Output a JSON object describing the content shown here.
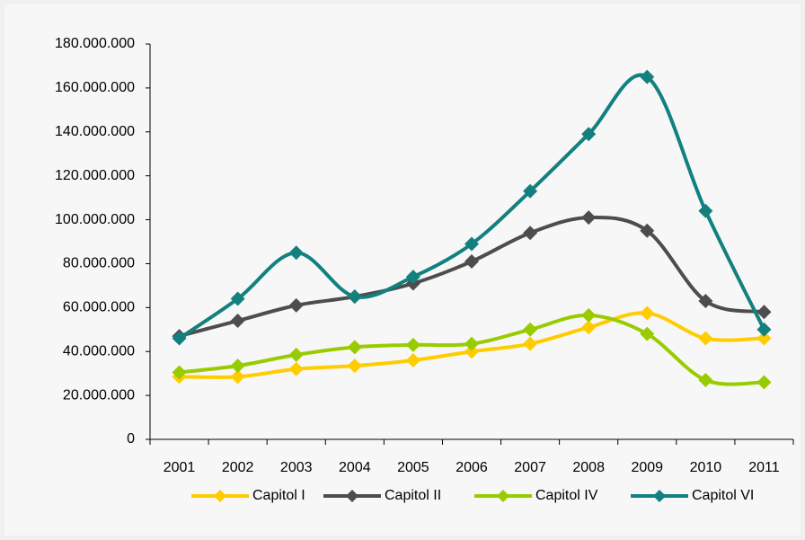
{
  "chart_data": {
    "type": "line",
    "categories": [
      "2001",
      "2002",
      "2003",
      "2004",
      "2005",
      "2006",
      "2007",
      "2008",
      "2009",
      "2010",
      "2011"
    ],
    "series": [
      {
        "name": "Capitol I",
        "color": "#ffcc00",
        "values": [
          28500000,
          28500000,
          32000000,
          33500000,
          36000000,
          40000000,
          43500000,
          51000000,
          57500000,
          46000000,
          46000000
        ]
      },
      {
        "name": "Capitol II",
        "color": "#4d4d4d",
        "values": [
          47000000,
          54000000,
          61000000,
          65000000,
          71000000,
          81000000,
          94000000,
          101000000,
          95000000,
          63000000,
          58000000
        ]
      },
      {
        "name": "Capitol IV",
        "color": "#99cc00",
        "values": [
          30500000,
          33500000,
          38500000,
          42000000,
          43000000,
          43500000,
          50000000,
          56500000,
          48000000,
          27000000,
          26000000
        ]
      },
      {
        "name": "Capitol VI",
        "color": "#138080",
        "values": [
          46000000,
          64000000,
          85000000,
          65000000,
          74000000,
          89000000,
          113000000,
          139000000,
          165000000,
          104000000,
          50000000
        ]
      }
    ],
    "ylim": [
      0,
      180000000
    ],
    "yticks": [
      0,
      {
        "value": 20000000,
        "label": "20.000.000"
      },
      {
        "value": 40000000,
        "label": "40.000.000"
      },
      {
        "value": 60000000,
        "label": "60.000.000"
      },
      {
        "value": 80000000,
        "label": "80.000.000"
      },
      {
        "value": 100000000,
        "label": "100.000.000"
      },
      {
        "value": 120000000,
        "label": "120.000.000"
      },
      {
        "value": 140000000,
        "label": "140.000.000"
      },
      {
        "value": 160000000,
        "label": "160.000.000"
      },
      {
        "value": 180000000,
        "label": "180.000.000"
      }
    ],
    "legend": "bottom"
  }
}
